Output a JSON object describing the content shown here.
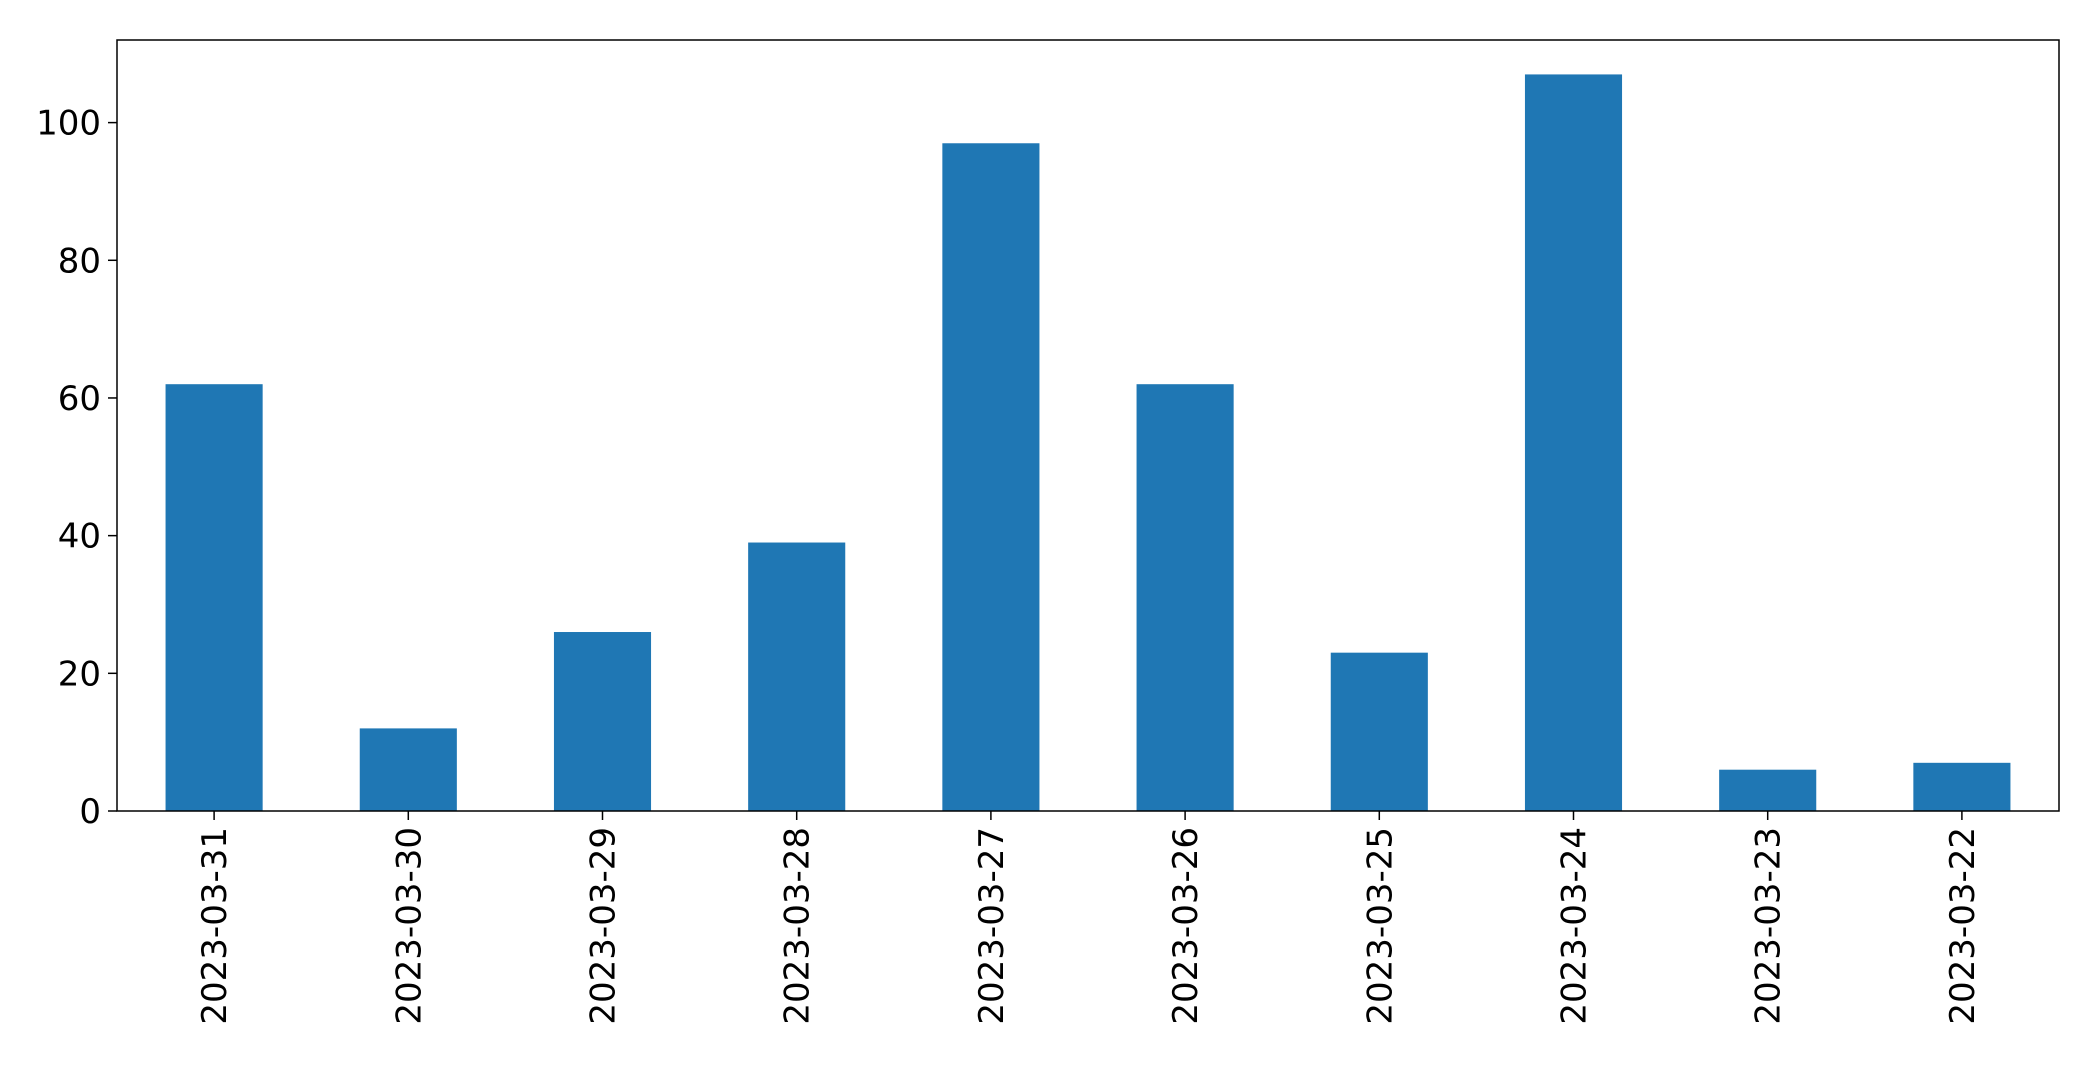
{
  "chart_data": {
    "type": "bar",
    "title": "",
    "xlabel": "",
    "ylabel": "",
    "categories": [
      "2023-03-31",
      "2023-03-30",
      "2023-03-29",
      "2023-03-28",
      "2023-03-27",
      "2023-03-26",
      "2023-03-25",
      "2023-03-24",
      "2023-03-23",
      "2023-03-22"
    ],
    "values": [
      62,
      12,
      26,
      39,
      97,
      62,
      23,
      107,
      6,
      7
    ],
    "ylim": [
      0,
      112
    ],
    "yticks": [
      0,
      20,
      40,
      60,
      80,
      100
    ],
    "bar_color": "#1f77b4",
    "axis_color": "#000000",
    "grid": false,
    "legend": false,
    "xtick_rotation": "vertical"
  }
}
